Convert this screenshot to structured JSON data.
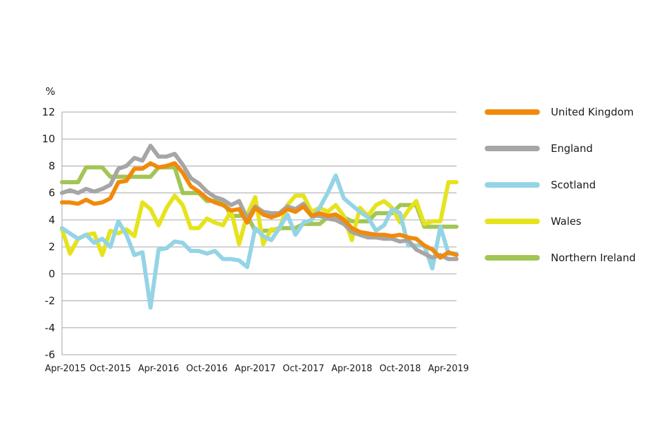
{
  "chart_data": {
    "type": "line",
    "unit_label": "%",
    "ylim": [
      -6,
      12
    ],
    "y_ticks": [
      12,
      10,
      8,
      6,
      4,
      2,
      0,
      -2,
      -4,
      -6
    ],
    "x_ticks": [
      "Apr-2015",
      "Oct-2015",
      "Apr-2016",
      "Oct-2016",
      "Apr-2017",
      "Oct-2017",
      "Apr-2018",
      "Oct-2018",
      "Apr-2019"
    ],
    "x": [
      "2015-04",
      "2015-05",
      "2015-06",
      "2015-07",
      "2015-08",
      "2015-09",
      "2015-10",
      "2015-11",
      "2015-12",
      "2016-01",
      "2016-02",
      "2016-03",
      "2016-04",
      "2016-05",
      "2016-06",
      "2016-07",
      "2016-08",
      "2016-09",
      "2016-10",
      "2016-11",
      "2016-12",
      "2017-01",
      "2017-02",
      "2017-03",
      "2017-04",
      "2017-05",
      "2017-06",
      "2017-07",
      "2017-08",
      "2017-09",
      "2017-10",
      "2017-11",
      "2017-12",
      "2018-01",
      "2018-02",
      "2018-03",
      "2018-04",
      "2018-05",
      "2018-06",
      "2018-07",
      "2018-08",
      "2018-09",
      "2018-10",
      "2018-11",
      "2018-12",
      "2019-01",
      "2019-02",
      "2019-03",
      "2019-04",
      "2019-05"
    ],
    "grid": true,
    "legend_position": "right",
    "series": [
      {
        "name": "Northern Ireland",
        "color": "#a2c655",
        "values": [
          6.8,
          6.8,
          6.8,
          7.9,
          7.9,
          7.9,
          7.2,
          7.2,
          7.2,
          7.2,
          7.2,
          7.2,
          7.9,
          7.9,
          7.9,
          6.0,
          6.0,
          6.0,
          5.4,
          5.4,
          5.4,
          4.3,
          4.3,
          4.3,
          3.2,
          3.2,
          3.2,
          3.4,
          3.4,
          3.4,
          3.7,
          3.7,
          3.7,
          4.2,
          4.2,
          4.2,
          3.9,
          3.9,
          3.9,
          4.5,
          4.5,
          4.5,
          5.1,
          5.1,
          5.1,
          3.5,
          3.5,
          3.5,
          3.5,
          3.5
        ]
      },
      {
        "name": "Wales",
        "color": "#e6e31d",
        "values": [
          3.3,
          1.5,
          2.6,
          2.9,
          3.0,
          1.4,
          3.2,
          3.0,
          3.3,
          2.8,
          5.3,
          4.8,
          3.6,
          4.9,
          5.8,
          5.1,
          3.4,
          3.4,
          4.1,
          3.8,
          3.6,
          4.7,
          2.2,
          4.4,
          5.7,
          2.2,
          3.3,
          3.3,
          5.1,
          5.8,
          5.8,
          4.6,
          4.9,
          4.6,
          5.1,
          4.3,
          2.5,
          4.9,
          4.3,
          5.1,
          5.4,
          4.9,
          3.8,
          4.7,
          5.4,
          3.7,
          3.9,
          3.9,
          6.8,
          6.8
        ]
      },
      {
        "name": "Scotland",
        "color": "#94d4e6",
        "values": [
          3.4,
          3.0,
          2.6,
          2.9,
          2.3,
          2.6,
          2.0,
          3.9,
          2.9,
          1.4,
          1.6,
          -2.5,
          1.8,
          1.9,
          2.4,
          2.3,
          1.7,
          1.7,
          1.5,
          1.7,
          1.1,
          1.1,
          1.0,
          0.5,
          3.4,
          2.8,
          2.5,
          3.4,
          4.4,
          2.9,
          3.8,
          4.0,
          4.9,
          6.0,
          7.3,
          5.6,
          5.1,
          4.6,
          4.2,
          3.2,
          3.6,
          4.8,
          4.5,
          2.1,
          2.1,
          2.1,
          0.4,
          3.5,
          1.5,
          1.5
        ]
      },
      {
        "name": "England",
        "color": "#a6a6a6",
        "values": [
          6.0,
          6.2,
          6.0,
          6.3,
          6.1,
          6.3,
          6.6,
          7.8,
          8.0,
          8.6,
          8.4,
          9.5,
          8.7,
          8.7,
          8.9,
          8.1,
          7.1,
          6.7,
          6.1,
          5.7,
          5.5,
          5.1,
          5.4,
          4.1,
          5.0,
          4.6,
          4.5,
          4.5,
          5.0,
          4.8,
          5.2,
          4.3,
          4.3,
          4.1,
          4.0,
          3.7,
          3.1,
          2.9,
          2.7,
          2.7,
          2.6,
          2.6,
          2.4,
          2.5,
          1.8,
          1.5,
          1.2,
          1.4,
          1.1,
          1.1
        ]
      },
      {
        "name": "United Kingdom",
        "color": "#f08a0c",
        "values": [
          5.3,
          5.3,
          5.2,
          5.5,
          5.2,
          5.3,
          5.6,
          6.8,
          6.9,
          7.8,
          7.8,
          8.2,
          7.9,
          8.0,
          8.2,
          7.5,
          6.5,
          6.1,
          5.6,
          5.3,
          5.1,
          4.7,
          4.8,
          3.8,
          4.9,
          4.4,
          4.2,
          4.4,
          4.8,
          4.6,
          5.0,
          4.3,
          4.5,
          4.3,
          4.4,
          4.0,
          3.4,
          3.1,
          3.0,
          2.9,
          2.9,
          2.8,
          2.9,
          2.7,
          2.6,
          2.1,
          1.8,
          1.2,
          1.6,
          1.4
        ]
      }
    ],
    "legend": [
      {
        "label": "United Kingdom",
        "color": "#f08a0c"
      },
      {
        "label": "England",
        "color": "#a6a6a6"
      },
      {
        "label": "Scotland",
        "color": "#94d4e6"
      },
      {
        "label": "Wales",
        "color": "#e6e31d"
      },
      {
        "label": "Northern Ireland",
        "color": "#a2c655"
      }
    ]
  }
}
